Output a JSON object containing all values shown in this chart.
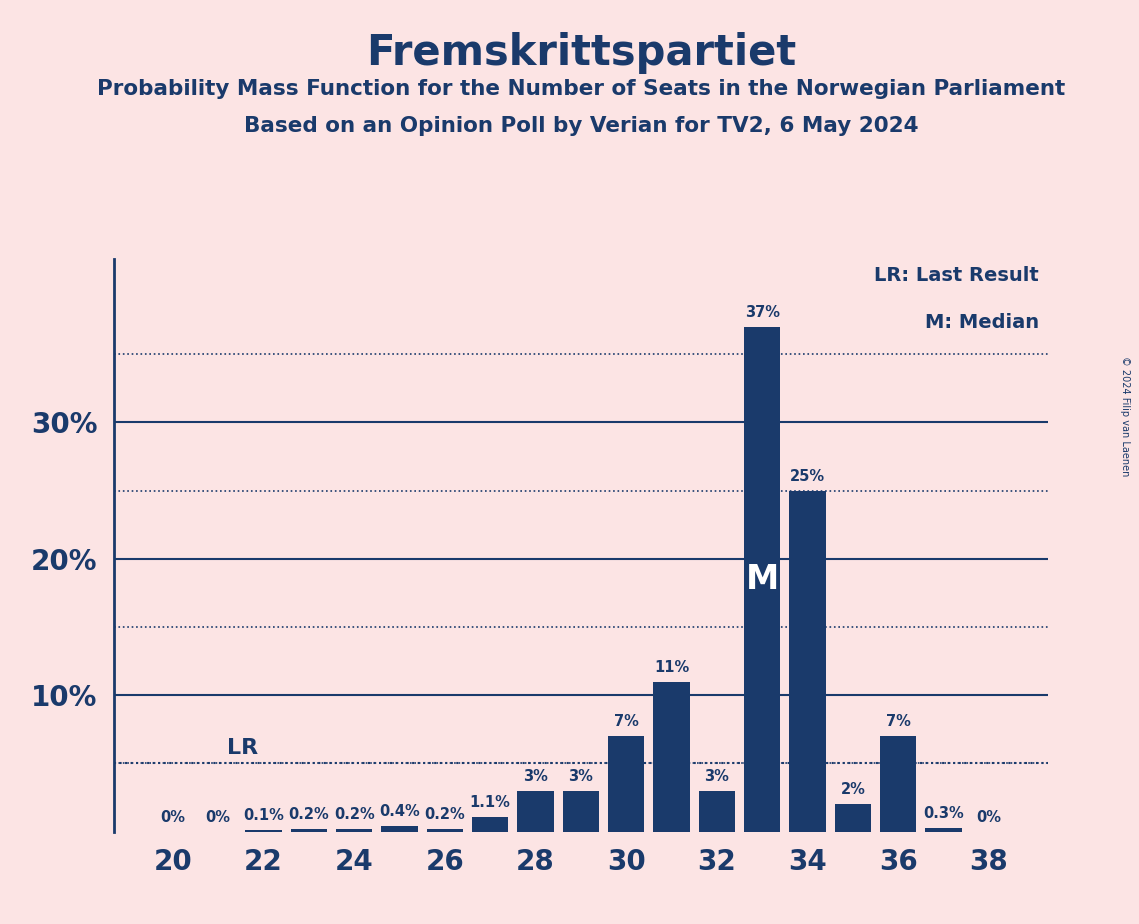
{
  "title": "Fremskrittspartiet",
  "subtitle1": "Probability Mass Function for the Number of Seats in the Norwegian Parliament",
  "subtitle2": "Based on an Opinion Poll by Verian for TV2, 6 May 2024",
  "copyright": "© 2024 Filip van Laenen",
  "seats": [
    20,
    21,
    22,
    23,
    24,
    25,
    26,
    27,
    28,
    29,
    30,
    31,
    32,
    33,
    34,
    35,
    36,
    37,
    38
  ],
  "probs": [
    0.0,
    0.0,
    0.1,
    0.2,
    0.2,
    0.4,
    0.2,
    1.1,
    3.0,
    3.0,
    7.0,
    11.0,
    3.0,
    37.0,
    25.0,
    2.0,
    7.0,
    0.3,
    0.0
  ],
  "labels": [
    "0%",
    "0%",
    "0.1%",
    "0.2%",
    "0.2%",
    "0.4%",
    "0.2%",
    "1.1%",
    "3%",
    "3%",
    "7%",
    "11%",
    "3%",
    "37%",
    "25%",
    "2%",
    "7%",
    "0.3%",
    "0%"
  ],
  "bar_color": "#1a3a6b",
  "bg_color": "#fce4e4",
  "text_color": "#1a3a6b",
  "lr_value": 5.0,
  "median_seat": 33,
  "solid_yticks": [
    10,
    20,
    30
  ],
  "dotted_yticks": [
    5,
    15,
    25,
    35
  ],
  "xlabel_seats": [
    20,
    22,
    24,
    26,
    28,
    30,
    32,
    34,
    36,
    38
  ],
  "legend_lr": "LR: Last Result",
  "legend_m": "M: Median",
  "lr_label": "LR"
}
